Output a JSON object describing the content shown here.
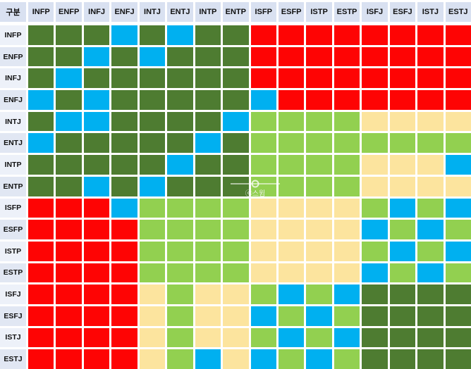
{
  "header": {
    "corner_label": "구분"
  },
  "watermark": {
    "text": "ⓒ스윔"
  },
  "colors": {
    "page_bg": "#ffffff",
    "header_bg": "#d9e1f1",
    "label_bg_a": "#edf1f9",
    "label_bg_b": "#e1e7f3",
    "label_text": "#111111"
  },
  "chart_data": {
    "type": "heatmap",
    "title": "MBTI compatibility matrix",
    "corner_label": "구분",
    "x_categories": [
      "INFP",
      "ENFP",
      "INFJ",
      "ENFJ",
      "INTJ",
      "ENTJ",
      "INTP",
      "ENTP",
      "ISFP",
      "ESFP",
      "ISTP",
      "ESTP",
      "ISFJ",
      "ESFJ",
      "ISTJ",
      "ESTJ"
    ],
    "y_categories": [
      "INFP",
      "ENFP",
      "INFJ",
      "ENFJ",
      "INTJ",
      "ENTJ",
      "INTP",
      "ENTP",
      "ISFP",
      "ESFP",
      "ISTP",
      "ESTP",
      "ISFJ",
      "ESFJ",
      "ISTJ",
      "ESTJ"
    ],
    "cells": [
      [
        "G",
        "G",
        "G",
        "B",
        "G",
        "B",
        "G",
        "G",
        "R",
        "R",
        "R",
        "R",
        "R",
        "R",
        "R",
        "R"
      ],
      [
        "G",
        "G",
        "B",
        "G",
        "B",
        "G",
        "G",
        "G",
        "R",
        "R",
        "R",
        "R",
        "R",
        "R",
        "R",
        "R"
      ],
      [
        "G",
        "B",
        "G",
        "G",
        "G",
        "G",
        "G",
        "G",
        "R",
        "R",
        "R",
        "R",
        "R",
        "R",
        "R",
        "R"
      ],
      [
        "B",
        "G",
        "B",
        "G",
        "G",
        "G",
        "G",
        "G",
        "B",
        "R",
        "R",
        "R",
        "R",
        "R",
        "R",
        "R"
      ],
      [
        "G",
        "B",
        "B",
        "G",
        "G",
        "G",
        "G",
        "B",
        "L",
        "L",
        "L",
        "L",
        "Y",
        "Y",
        "Y",
        "Y"
      ],
      [
        "B",
        "G",
        "G",
        "G",
        "G",
        "G",
        "B",
        "G",
        "L",
        "L",
        "L",
        "L",
        "L",
        "L",
        "L",
        "L"
      ],
      [
        "G",
        "G",
        "G",
        "G",
        "G",
        "B",
        "G",
        "G",
        "L",
        "L",
        "L",
        "L",
        "Y",
        "Y",
        "Y",
        "B"
      ],
      [
        "G",
        "G",
        "B",
        "G",
        "B",
        "G",
        "G",
        "G",
        "L",
        "L",
        "L",
        "L",
        "Y",
        "Y",
        "Y",
        "Y"
      ],
      [
        "R",
        "R",
        "R",
        "B",
        "L",
        "L",
        "L",
        "L",
        "Y",
        "Y",
        "Y",
        "Y",
        "L",
        "B",
        "L",
        "B"
      ],
      [
        "R",
        "R",
        "R",
        "R",
        "L",
        "L",
        "L",
        "L",
        "Y",
        "Y",
        "Y",
        "Y",
        "B",
        "L",
        "B",
        "L"
      ],
      [
        "R",
        "R",
        "R",
        "R",
        "L",
        "L",
        "L",
        "L",
        "Y",
        "Y",
        "Y",
        "Y",
        "L",
        "B",
        "L",
        "B"
      ],
      [
        "R",
        "R",
        "R",
        "R",
        "L",
        "L",
        "L",
        "L",
        "Y",
        "Y",
        "Y",
        "Y",
        "B",
        "L",
        "B",
        "L"
      ],
      [
        "R",
        "R",
        "R",
        "R",
        "Y",
        "L",
        "Y",
        "Y",
        "L",
        "B",
        "L",
        "B",
        "G",
        "G",
        "G",
        "G"
      ],
      [
        "R",
        "R",
        "R",
        "R",
        "Y",
        "L",
        "Y",
        "Y",
        "B",
        "L",
        "B",
        "L",
        "G",
        "G",
        "G",
        "G"
      ],
      [
        "R",
        "R",
        "R",
        "R",
        "Y",
        "L",
        "Y",
        "Y",
        "L",
        "B",
        "L",
        "B",
        "G",
        "G",
        "G",
        "G"
      ],
      [
        "R",
        "R",
        "R",
        "R",
        "Y",
        "L",
        "B",
        "Y",
        "B",
        "L",
        "B",
        "L",
        "G",
        "G",
        "G",
        "G"
      ]
    ],
    "palette": {
      "G": "#4e7c31",
      "B": "#00b0f0",
      "R": "#fe0404",
      "L": "#92d050",
      "Y": "#fce49e"
    },
    "palette_names": {
      "G": "dark-green",
      "B": "sky-blue",
      "R": "red",
      "L": "light-green",
      "Y": "cream-yellow"
    },
    "layout": {
      "grid_lines": "white",
      "legend": "none"
    }
  }
}
